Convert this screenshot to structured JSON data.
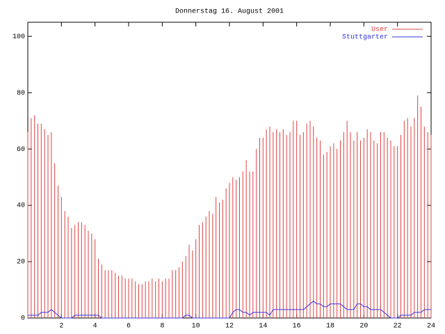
{
  "chart_data": {
    "type": "line",
    "title": "Donnerstag 16. August 2001",
    "x": [
      0,
      0.2,
      0.4,
      0.6,
      0.8,
      1,
      1.2,
      1.4,
      1.6,
      1.8,
      2,
      2.2,
      2.4,
      2.6,
      2.8,
      3,
      3.2,
      3.4,
      3.6,
      3.8,
      4,
      4.2,
      4.4,
      4.6,
      4.8,
      5,
      5.2,
      5.4,
      5.6,
      5.8,
      6,
      6.2,
      6.4,
      6.6,
      6.8,
      7,
      7.2,
      7.4,
      7.6,
      7.8,
      8,
      8.2,
      8.4,
      8.6,
      8.8,
      9,
      9.2,
      9.4,
      9.6,
      9.8,
      10,
      10.2,
      10.4,
      10.6,
      10.8,
      11,
      11.2,
      11.4,
      11.6,
      11.8,
      12,
      12.2,
      12.4,
      12.6,
      12.8,
      13,
      13.2,
      13.4,
      13.6,
      13.8,
      14,
      14.2,
      14.4,
      14.6,
      14.8,
      15,
      15.2,
      15.4,
      15.6,
      15.8,
      16,
      16.2,
      16.4,
      16.6,
      16.8,
      17,
      17.2,
      17.4,
      17.6,
      17.8,
      18,
      18.2,
      18.4,
      18.6,
      18.8,
      19,
      19.2,
      19.4,
      19.6,
      19.8,
      20,
      20.2,
      20.4,
      20.6,
      20.8,
      21,
      21.2,
      21.4,
      21.6,
      21.8,
      22,
      22.2,
      22.4,
      22.6,
      22.8,
      23,
      23.2,
      23.4,
      23.6,
      23.8,
      24
    ],
    "series": [
      {
        "name": "User",
        "color": "#e04040",
        "style": "impulses",
        "values": [
          66,
          71,
          72,
          69,
          69,
          67,
          65,
          66,
          55,
          47,
          43,
          38,
          36,
          32,
          33,
          34,
          34,
          33,
          31,
          30,
          28,
          21,
          19,
          17,
          17,
          17,
          16,
          15,
          15,
          14,
          14,
          14,
          13,
          12,
          12,
          13,
          13,
          14,
          13,
          14,
          13,
          14,
          14,
          17,
          17,
          18,
          20,
          22,
          26,
          24,
          28,
          33,
          34,
          36,
          38,
          37,
          43,
          41,
          42,
          46,
          48,
          50,
          49,
          50,
          52,
          56,
          52,
          52,
          60,
          64,
          64,
          67,
          68,
          66,
          67,
          66,
          67,
          65,
          66,
          70,
          70,
          65,
          66,
          69,
          70,
          68,
          64,
          63,
          58,
          59,
          61,
          62,
          60,
          63,
          66,
          70,
          66,
          63,
          66,
          63,
          64,
          67,
          66,
          63,
          62,
          66,
          66,
          64,
          63,
          61,
          61,
          65,
          70,
          71,
          68,
          71,
          79,
          75,
          68,
          66,
          65
        ]
      },
      {
        "name": "Stuttgarter",
        "color": "#3030e0",
        "style": "lines",
        "values": [
          1,
          1,
          1,
          1,
          2,
          2,
          2,
          3,
          2,
          1,
          0,
          0,
          0,
          0,
          1,
          1,
          1,
          1,
          1,
          1,
          1,
          1,
          0,
          0,
          0,
          0,
          0,
          0,
          0,
          0,
          0,
          0,
          0,
          0,
          0,
          0,
          0,
          0,
          0,
          0,
          0,
          0,
          0,
          0,
          0,
          0,
          0,
          1,
          1,
          0,
          0,
          0,
          0,
          0,
          0,
          0,
          0,
          0,
          0,
          0,
          0,
          2,
          3,
          3,
          2,
          2,
          1,
          2,
          2,
          2,
          2,
          2,
          1,
          3,
          3,
          3,
          3,
          3,
          3,
          3,
          3,
          3,
          3,
          4,
          5,
          6,
          5,
          5,
          4,
          4,
          5,
          5,
          5,
          5,
          4,
          3,
          3,
          3,
          5,
          5,
          4,
          4,
          3,
          3,
          3,
          3,
          2,
          1,
          0,
          0,
          0,
          1,
          1,
          1,
          1,
          2,
          2,
          2,
          3,
          3,
          3
        ]
      }
    ],
    "xlim": [
      0,
      24
    ],
    "xticks": [
      2,
      4,
      6,
      8,
      10,
      12,
      14,
      16,
      18,
      20,
      22,
      24
    ],
    "ylim": [
      0,
      105
    ],
    "yticks": [
      0,
      20,
      40,
      60,
      80,
      100
    ],
    "legend": "top-right"
  }
}
